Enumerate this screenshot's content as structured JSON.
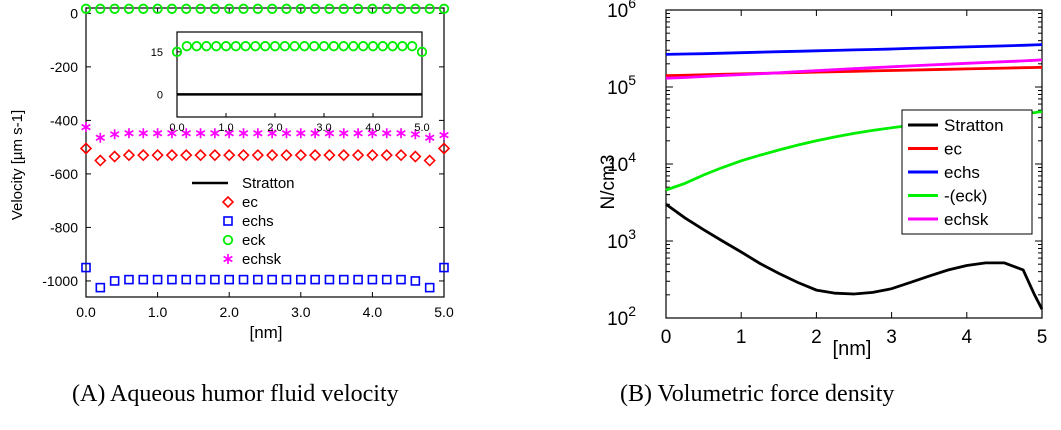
{
  "captions": {
    "a": "(A) Aqueous humor fluid velocity",
    "b": "(B) Volumetric force density"
  },
  "colors": {
    "stratton": "#000000",
    "ec": "#ff0000",
    "echs": "#0000ff",
    "eck": "#00ee00",
    "echsk": "#ff00ff"
  },
  "chart_data": [
    {
      "type": "scatter",
      "title": "",
      "xlabel": "[nm]",
      "ylabel": "Velocity [µm s-1]",
      "xlim": [
        0,
        5
      ],
      "ylim": [
        -1060,
        20
      ],
      "xticks": [
        "0.0",
        "1.0",
        "2.0",
        "3.0",
        "4.0",
        "5.0"
      ],
      "yticks": [
        "0",
        "-200",
        "-400",
        "-600",
        "-800",
        "-1000"
      ],
      "grid": false,
      "legend_position": "lower-center",
      "x": [
        0.0,
        0.2,
        0.4,
        0.6,
        0.8,
        1.0,
        1.2,
        1.4,
        1.6,
        1.8,
        2.0,
        2.2,
        2.4,
        2.6,
        2.8,
        3.0,
        3.2,
        3.4,
        3.6,
        3.8,
        4.0,
        4.2,
        4.4,
        4.6,
        4.8,
        5.0
      ],
      "series": [
        {
          "name": "Stratton",
          "style": "line",
          "values": [
            0,
            0,
            0,
            0,
            0,
            0,
            0,
            0,
            0,
            0,
            0,
            0,
            0,
            0,
            0,
            0,
            0,
            0,
            0,
            0,
            0,
            0,
            0,
            0,
            0,
            0
          ]
        },
        {
          "name": "ec",
          "style": "diamond",
          "values": [
            -505,
            -550,
            -535,
            -530,
            -530,
            -530,
            -530,
            -530,
            -530,
            -530,
            -530,
            -530,
            -530,
            -530,
            -530,
            -530,
            -530,
            -530,
            -530,
            -530,
            -530,
            -530,
            -530,
            -535,
            -550,
            -505
          ]
        },
        {
          "name": "echs",
          "style": "square",
          "values": [
            -950,
            -1025,
            -1000,
            -995,
            -995,
            -995,
            -995,
            -995,
            -995,
            -995,
            -995,
            -995,
            -995,
            -995,
            -995,
            -995,
            -995,
            -995,
            -995,
            -995,
            -995,
            -995,
            -995,
            -1000,
            -1025,
            -950
          ]
        },
        {
          "name": "eck",
          "style": "circle",
          "values": [
            17,
            17,
            17,
            17,
            17,
            17,
            17,
            17,
            17,
            17,
            17,
            17,
            17,
            17,
            17,
            17,
            17,
            17,
            17,
            17,
            17,
            17,
            17,
            17,
            17,
            17
          ]
        },
        {
          "name": "echsk",
          "style": "asterisk",
          "values": [
            -425,
            -465,
            -452,
            -448,
            -448,
            -448,
            -448,
            -448,
            -448,
            -448,
            -448,
            -448,
            -448,
            -448,
            -448,
            -448,
            -448,
            -448,
            -448,
            -448,
            -448,
            -448,
            -448,
            -452,
            -465,
            -455
          ]
        }
      ],
      "inset": {
        "xlim": [
          0,
          5
        ],
        "ylim": [
          -8,
          22
        ],
        "xticks": [
          "0.0",
          "1.0",
          "2.0",
          "3.0",
          "4.0",
          "5.0"
        ],
        "yticks": [
          "15",
          "0"
        ],
        "stratton": [
          0,
          0
        ],
        "eck": [
          15,
          17,
          17,
          17,
          17,
          17,
          17,
          17,
          17,
          17,
          17,
          17,
          17,
          17,
          17,
          17,
          17,
          17,
          17,
          17,
          17,
          17,
          17,
          17,
          17,
          15
        ]
      }
    },
    {
      "type": "line",
      "title": "",
      "xlabel": "[nm]",
      "ylabel": "N/cm3",
      "xlim": [
        0,
        5
      ],
      "ylim": [
        100,
        1000000
      ],
      "yscale": "log",
      "xticks": [
        "0",
        "1",
        "2",
        "3",
        "4",
        "5"
      ],
      "yticks": [
        "10^2",
        "10^3",
        "10^4",
        "10^5",
        "10^6"
      ],
      "grid": false,
      "legend_position": "right",
      "x": [
        0,
        0.25,
        0.5,
        0.75,
        1,
        1.25,
        1.5,
        1.75,
        2,
        2.25,
        2.5,
        2.75,
        3,
        3.25,
        3.5,
        3.75,
        4,
        4.25,
        4.5,
        4.75,
        4.9,
        5
      ],
      "series": [
        {
          "name": "Stratton",
          "values": [
            3000,
            2000,
            1400,
            1000,
            720,
            510,
            380,
            290,
            230,
            210,
            205,
            215,
            240,
            290,
            350,
            420,
            480,
            520,
            520,
            420,
            200,
            130
          ]
        },
        {
          "name": "ec",
          "values": [
            140000,
            142000,
            144000,
            146000,
            148000,
            150000,
            152000,
            154000,
            156000,
            158000,
            160000,
            162000,
            164000,
            166000,
            168000,
            170000,
            172000,
            174000,
            176000,
            178000,
            179000,
            180000
          ]
        },
        {
          "name": "echs",
          "values": [
            265000,
            268000,
            271000,
            275000,
            279000,
            283000,
            287000,
            291000,
            295000,
            299000,
            303000,
            307000,
            312000,
            317000,
            322000,
            327000,
            332000,
            337000,
            342000,
            348000,
            352000,
            355000
          ]
        },
        {
          "name": "-(eck)",
          "values": [
            4600,
            5600,
            7200,
            9000,
            11000,
            13000,
            15200,
            17600,
            20000,
            22500,
            25000,
            27300,
            29500,
            31700,
            34000,
            36200,
            38300,
            40500,
            42700,
            45000,
            46500,
            48000
          ]
        },
        {
          "name": "echsk",
          "values": [
            130000,
            133000,
            137000,
            141000,
            145000,
            149000,
            153000,
            158000,
            163000,
            168000,
            173000,
            178000,
            183000,
            188000,
            193000,
            198000,
            203000,
            208000,
            213000,
            218000,
            222000,
            225000
          ]
        }
      ]
    }
  ]
}
